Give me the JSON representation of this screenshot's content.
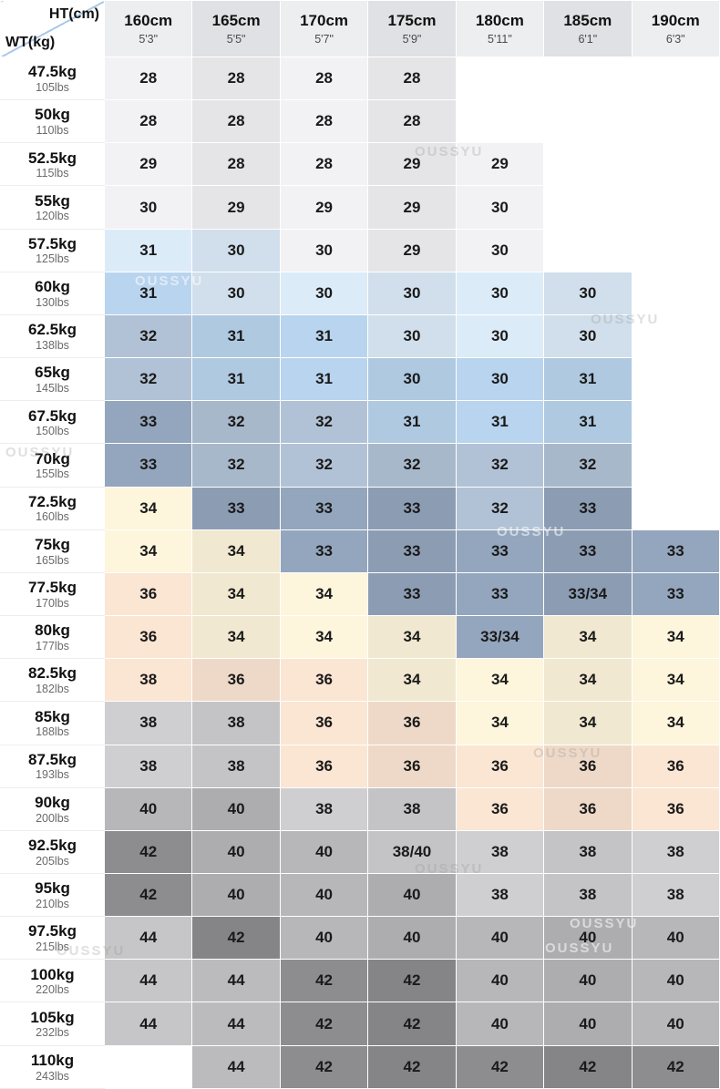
{
  "chart_data": {
    "type": "table",
    "corner": {
      "top": "HT(cm)",
      "bottom": "WT(kg)"
    },
    "columns": [
      {
        "cm": "160cm",
        "ft": "5'3\""
      },
      {
        "cm": "165cm",
        "ft": "5'5\""
      },
      {
        "cm": "170cm",
        "ft": "5'7\""
      },
      {
        "cm": "175cm",
        "ft": "5'9\""
      },
      {
        "cm": "180cm",
        "ft": "5'11\""
      },
      {
        "cm": "185cm",
        "ft": "6'1\""
      },
      {
        "cm": "190cm",
        "ft": "6'3\""
      }
    ],
    "palette": {
      "w": "#ffffff",
      "gry": "#f2f2f4",
      "lb": "#dcebf8",
      "mb": "#b9d4ee",
      "gb": "#b2c2d6",
      "sl": "#94a6bd",
      "cr": "#fdf5dc",
      "pc": "#fbe5d3",
      "d38": "#cfcfd1",
      "d40": "#b7b7b9",
      "d42": "#8d8d8f",
      "d44": "#c6c6c8"
    },
    "rows": [
      {
        "kg": "47.5kg",
        "lbs": "105lbs",
        "cells": [
          {
            "v": "28",
            "c": "gry"
          },
          {
            "v": "28",
            "c": "gry"
          },
          {
            "v": "28",
            "c": "gry"
          },
          {
            "v": "28",
            "c": "gry"
          },
          {
            "v": "",
            "c": "w"
          },
          {
            "v": "",
            "c": "w"
          },
          {
            "v": "",
            "c": "w"
          }
        ]
      },
      {
        "kg": "50kg",
        "lbs": "110lbs",
        "cells": [
          {
            "v": "28",
            "c": "gry"
          },
          {
            "v": "28",
            "c": "gry"
          },
          {
            "v": "28",
            "c": "gry"
          },
          {
            "v": "28",
            "c": "gry"
          },
          {
            "v": "",
            "c": "w"
          },
          {
            "v": "",
            "c": "w"
          },
          {
            "v": "",
            "c": "w"
          }
        ]
      },
      {
        "kg": "52.5kg",
        "lbs": "115lbs",
        "cells": [
          {
            "v": "29",
            "c": "gry"
          },
          {
            "v": "28",
            "c": "gry"
          },
          {
            "v": "28",
            "c": "gry"
          },
          {
            "v": "29",
            "c": "gry"
          },
          {
            "v": "29",
            "c": "gry"
          },
          {
            "v": "",
            "c": "w"
          },
          {
            "v": "",
            "c": "w"
          }
        ]
      },
      {
        "kg": "55kg",
        "lbs": "120lbs",
        "cells": [
          {
            "v": "30",
            "c": "gry"
          },
          {
            "v": "29",
            "c": "gry"
          },
          {
            "v": "29",
            "c": "gry"
          },
          {
            "v": "29",
            "c": "gry"
          },
          {
            "v": "30",
            "c": "gry"
          },
          {
            "v": "",
            "c": "w"
          },
          {
            "v": "",
            "c": "w"
          }
        ]
      },
      {
        "kg": "57.5kg",
        "lbs": "125lbs",
        "cells": [
          {
            "v": "31",
            "c": "lb"
          },
          {
            "v": "30",
            "c": "lb"
          },
          {
            "v": "30",
            "c": "gry"
          },
          {
            "v": "29",
            "c": "gry"
          },
          {
            "v": "30",
            "c": "gry"
          },
          {
            "v": "",
            "c": "w"
          },
          {
            "v": "",
            "c": "w"
          }
        ]
      },
      {
        "kg": "60kg",
        "lbs": "130lbs",
        "cells": [
          {
            "v": "31",
            "c": "mb"
          },
          {
            "v": "30",
            "c": "lb"
          },
          {
            "v": "30",
            "c": "lb"
          },
          {
            "v": "30",
            "c": "lb"
          },
          {
            "v": "30",
            "c": "lb"
          },
          {
            "v": "30",
            "c": "lb"
          },
          {
            "v": "",
            "c": "w"
          }
        ]
      },
      {
        "kg": "62.5kg",
        "lbs": "138lbs",
        "cells": [
          {
            "v": "32",
            "c": "gb"
          },
          {
            "v": "31",
            "c": "mb"
          },
          {
            "v": "31",
            "c": "mb"
          },
          {
            "v": "30",
            "c": "lb"
          },
          {
            "v": "30",
            "c": "lb"
          },
          {
            "v": "30",
            "c": "lb"
          },
          {
            "v": "",
            "c": "w"
          }
        ]
      },
      {
        "kg": "65kg",
        "lbs": "145lbs",
        "cells": [
          {
            "v": "32",
            "c": "gb"
          },
          {
            "v": "31",
            "c": "mb"
          },
          {
            "v": "31",
            "c": "mb"
          },
          {
            "v": "30",
            "c": "mb"
          },
          {
            "v": "30",
            "c": "mb"
          },
          {
            "v": "31",
            "c": "mb"
          },
          {
            "v": "",
            "c": "w"
          }
        ]
      },
      {
        "kg": "67.5kg",
        "lbs": "150lbs",
        "cells": [
          {
            "v": "33",
            "c": "sl"
          },
          {
            "v": "32",
            "c": "gb"
          },
          {
            "v": "32",
            "c": "gb"
          },
          {
            "v": "31",
            "c": "mb"
          },
          {
            "v": "31",
            "c": "mb"
          },
          {
            "v": "31",
            "c": "mb"
          },
          {
            "v": "",
            "c": "w"
          }
        ]
      },
      {
        "kg": "70kg",
        "lbs": "155lbs",
        "cells": [
          {
            "v": "33",
            "c": "sl"
          },
          {
            "v": "32",
            "c": "gb"
          },
          {
            "v": "32",
            "c": "gb"
          },
          {
            "v": "32",
            "c": "gb"
          },
          {
            "v": "32",
            "c": "gb"
          },
          {
            "v": "32",
            "c": "gb"
          },
          {
            "v": "",
            "c": "w"
          }
        ]
      },
      {
        "kg": "72.5kg",
        "lbs": "160lbs",
        "cells": [
          {
            "v": "34",
            "c": "cr"
          },
          {
            "v": "33",
            "c": "sl"
          },
          {
            "v": "33",
            "c": "sl"
          },
          {
            "v": "33",
            "c": "sl"
          },
          {
            "v": "32",
            "c": "gb"
          },
          {
            "v": "33",
            "c": "sl"
          },
          {
            "v": "",
            "c": "w"
          }
        ]
      },
      {
        "kg": "75kg",
        "lbs": "165lbs",
        "cells": [
          {
            "v": "34",
            "c": "cr"
          },
          {
            "v": "34",
            "c": "cr"
          },
          {
            "v": "33",
            "c": "sl"
          },
          {
            "v": "33",
            "c": "sl"
          },
          {
            "v": "33",
            "c": "sl"
          },
          {
            "v": "33",
            "c": "sl"
          },
          {
            "v": "33",
            "c": "sl"
          }
        ]
      },
      {
        "kg": "77.5kg",
        "lbs": "170lbs",
        "cells": [
          {
            "v": "36",
            "c": "pc"
          },
          {
            "v": "34",
            "c": "cr"
          },
          {
            "v": "34",
            "c": "cr"
          },
          {
            "v": "33",
            "c": "sl"
          },
          {
            "v": "33",
            "c": "sl"
          },
          {
            "v": "33/34",
            "c": "sl"
          },
          {
            "v": "33",
            "c": "sl"
          }
        ]
      },
      {
        "kg": "80kg",
        "lbs": "177lbs",
        "cells": [
          {
            "v": "36",
            "c": "pc"
          },
          {
            "v": "34",
            "c": "cr"
          },
          {
            "v": "34",
            "c": "cr"
          },
          {
            "v": "34",
            "c": "cr"
          },
          {
            "v": "33/34",
            "c": "sl"
          },
          {
            "v": "34",
            "c": "cr"
          },
          {
            "v": "34",
            "c": "cr"
          }
        ]
      },
      {
        "kg": "82.5kg",
        "lbs": "182lbs",
        "cells": [
          {
            "v": "38",
            "c": "pc"
          },
          {
            "v": "36",
            "c": "pc"
          },
          {
            "v": "36",
            "c": "pc"
          },
          {
            "v": "34",
            "c": "cr"
          },
          {
            "v": "34",
            "c": "cr"
          },
          {
            "v": "34",
            "c": "cr"
          },
          {
            "v": "34",
            "c": "cr"
          }
        ]
      },
      {
        "kg": "85kg",
        "lbs": "188lbs",
        "cells": [
          {
            "v": "38",
            "c": "d38"
          },
          {
            "v": "38",
            "c": "d38"
          },
          {
            "v": "36",
            "c": "pc"
          },
          {
            "v": "36",
            "c": "pc"
          },
          {
            "v": "34",
            "c": "cr"
          },
          {
            "v": "34",
            "c": "cr"
          },
          {
            "v": "34",
            "c": "cr"
          }
        ]
      },
      {
        "kg": "87.5kg",
        "lbs": "193lbs",
        "cells": [
          {
            "v": "38",
            "c": "d38"
          },
          {
            "v": "38",
            "c": "d38"
          },
          {
            "v": "36",
            "c": "pc"
          },
          {
            "v": "36",
            "c": "pc"
          },
          {
            "v": "36",
            "c": "pc"
          },
          {
            "v": "36",
            "c": "pc"
          },
          {
            "v": "36",
            "c": "pc"
          }
        ]
      },
      {
        "kg": "90kg",
        "lbs": "200lbs",
        "cells": [
          {
            "v": "40",
            "c": "d40"
          },
          {
            "v": "40",
            "c": "d40"
          },
          {
            "v": "38",
            "c": "d38"
          },
          {
            "v": "38",
            "c": "d38"
          },
          {
            "v": "36",
            "c": "pc"
          },
          {
            "v": "36",
            "c": "pc"
          },
          {
            "v": "36",
            "c": "pc"
          }
        ]
      },
      {
        "kg": "92.5kg",
        "lbs": "205lbs",
        "cells": [
          {
            "v": "42",
            "c": "d42"
          },
          {
            "v": "40",
            "c": "d40"
          },
          {
            "v": "40",
            "c": "d40"
          },
          {
            "v": "38/40",
            "c": "d38"
          },
          {
            "v": "38",
            "c": "d38"
          },
          {
            "v": "38",
            "c": "d38"
          },
          {
            "v": "38",
            "c": "d38"
          }
        ]
      },
      {
        "kg": "95kg",
        "lbs": "210lbs",
        "cells": [
          {
            "v": "42",
            "c": "d42"
          },
          {
            "v": "40",
            "c": "d40"
          },
          {
            "v": "40",
            "c": "d40"
          },
          {
            "v": "40",
            "c": "d40"
          },
          {
            "v": "38",
            "c": "d38"
          },
          {
            "v": "38",
            "c": "d38"
          },
          {
            "v": "38",
            "c": "d38"
          }
        ]
      },
      {
        "kg": "97.5kg",
        "lbs": "215lbs",
        "cells": [
          {
            "v": "44",
            "c": "d44"
          },
          {
            "v": "42",
            "c": "d42"
          },
          {
            "v": "40",
            "c": "d40"
          },
          {
            "v": "40",
            "c": "d40"
          },
          {
            "v": "40",
            "c": "d40"
          },
          {
            "v": "40",
            "c": "d40"
          },
          {
            "v": "40",
            "c": "d40"
          }
        ]
      },
      {
        "kg": "100kg",
        "lbs": "220lbs",
        "cells": [
          {
            "v": "44",
            "c": "d44"
          },
          {
            "v": "44",
            "c": "d44"
          },
          {
            "v": "42",
            "c": "d42"
          },
          {
            "v": "42",
            "c": "d42"
          },
          {
            "v": "40",
            "c": "d40"
          },
          {
            "v": "40",
            "c": "d40"
          },
          {
            "v": "40",
            "c": "d40"
          }
        ]
      },
      {
        "kg": "105kg",
        "lbs": "232lbs",
        "cells": [
          {
            "v": "44",
            "c": "d44"
          },
          {
            "v": "44",
            "c": "d44"
          },
          {
            "v": "42",
            "c": "d42"
          },
          {
            "v": "42",
            "c": "d42"
          },
          {
            "v": "40",
            "c": "d40"
          },
          {
            "v": "40",
            "c": "d40"
          },
          {
            "v": "40",
            "c": "d40"
          }
        ]
      },
      {
        "kg": "110kg",
        "lbs": "243lbs",
        "cells": [
          {
            "v": "",
            "c": "w"
          },
          {
            "v": "44",
            "c": "d44"
          },
          {
            "v": "42",
            "c": "d42"
          },
          {
            "v": "42",
            "c": "d42"
          },
          {
            "v": "42",
            "c": "d42"
          },
          {
            "v": "42",
            "c": "d42"
          },
          {
            "v": "42",
            "c": "d42"
          }
        ]
      }
    ]
  },
  "watermark": {
    "text": "OUSSYU"
  }
}
